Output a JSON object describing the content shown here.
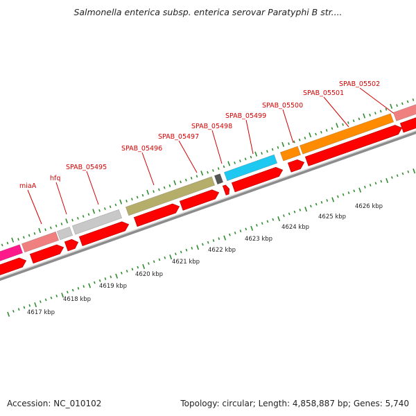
{
  "title": "Salmonella enterica subsp. enterica serovar Paratyphi B str....",
  "footer": {
    "accession": "Accession: NC_010102",
    "summary": "Topology: circular; Length: 4,858,887 bp; Genes: 5,740"
  },
  "colors": {
    "gene_label": "#d40000",
    "cds_red": "#ff0000",
    "backbone": "#8c8c8c",
    "tick_green": "#2e8b2e",
    "pink": "#ff1a8c",
    "salmon": "#f08080",
    "light_gray": "#c8c8c8",
    "olive": "#b5ad6a",
    "dark_gray": "#555555",
    "sky_blue": "#1ec8f0",
    "orange": "#ff8c00"
  },
  "gene_labels": [
    "miaA",
    "hfq",
    "SPAB_05495",
    "SPAB_05496",
    "SPAB_05497",
    "SPAB_05498",
    "SPAB_05499",
    "SPAB_05500",
    "SPAB_05501",
    "SPAB_05502"
  ],
  "kbp_labels": [
    "4617 kbp",
    "4618 kbp",
    "4619 kbp",
    "4620 kbp",
    "4621 kbp",
    "4622 kbp",
    "4623 kbp",
    "4624 kbp",
    "4625 kbp",
    "4626 kbp"
  ]
}
